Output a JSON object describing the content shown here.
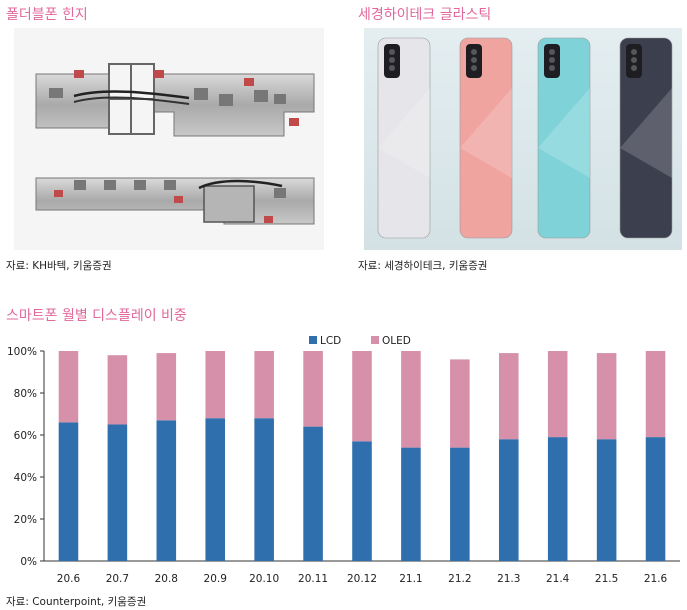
{
  "panels": {
    "hinge": {
      "title": "폴더블폰 힌지",
      "source": "자료: KH바텍, 키움증권"
    },
    "glass": {
      "title": "세경하이테크 글라스틱",
      "source": "자료: 세경하이테크, 키움증권",
      "phone_colors": [
        "#e6e6ea",
        "#f0a4a0",
        "#7fd3d8",
        "#3b3f4e"
      ]
    }
  },
  "chart_title": "스마트폰 월별 디스플레이 비중",
  "chart_source": "자료: Counterpoint, 키움증권",
  "chart_data": {
    "type": "bar",
    "stacked": true,
    "categories": [
      "20.6",
      "20.7",
      "20.8",
      "20.9",
      "20.10",
      "20.11",
      "20.12",
      "21.1",
      "21.2",
      "21.3",
      "21.4",
      "21.5",
      "21.6"
    ],
    "series": [
      {
        "name": "LCD",
        "color": "#2f6fad",
        "values": [
          66,
          65,
          67,
          68,
          68,
          64,
          57,
          54,
          54,
          58,
          59,
          58,
          59
        ]
      },
      {
        "name": "OLED",
        "color": "#d690aa",
        "values": [
          34,
          33,
          32,
          32,
          32,
          36,
          43,
          46,
          42,
          41,
          41,
          41,
          41
        ]
      }
    ],
    "y_ticks": [
      "0%",
      "20%",
      "40%",
      "60%",
      "80%",
      "100%"
    ],
    "ylim": [
      0,
      100
    ],
    "legend_position": "top-center",
    "grid": false
  }
}
